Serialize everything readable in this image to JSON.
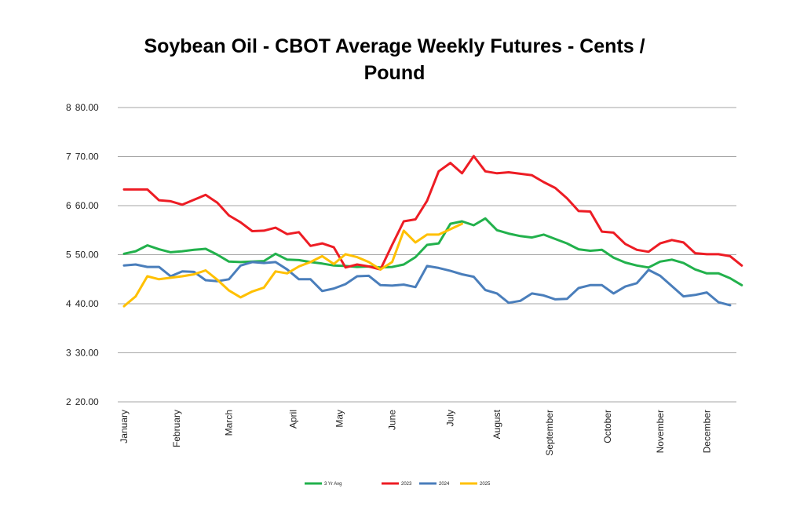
{
  "chart_data": {
    "type": "line",
    "title_line1": "Soybean Oil - CBOT Average Weekly Futures - Cents /",
    "title_line2": "Pound",
    "xlabel": "",
    "ylabel": "",
    "ylim": [
      20,
      80
    ],
    "grid": true,
    "legend_position": "bottom",
    "y_ticks": [
      {
        "value": 80,
        "prefix": "8",
        "label": "80.00"
      },
      {
        "value": 70,
        "prefix": "7",
        "label": "70.00"
      },
      {
        "value": 60,
        "prefix": "6",
        "label": "60.00"
      },
      {
        "value": 50,
        "prefix": "5",
        "label": "50.00"
      },
      {
        "value": 40,
        "prefix": "4",
        "label": "40.00"
      },
      {
        "value": 30,
        "prefix": "3",
        "label": "30.00"
      },
      {
        "value": 20,
        "prefix": "2",
        "label": "20.00"
      }
    ],
    "months": [
      {
        "label": "January",
        "week": 1
      },
      {
        "label": "February",
        "week": 5.5
      },
      {
        "label": "March",
        "week": 10
      },
      {
        "label": "April",
        "week": 15.5
      },
      {
        "label": "May",
        "week": 19.5
      },
      {
        "label": "June",
        "week": 24
      },
      {
        "label": "July",
        "week": 29
      },
      {
        "label": "August",
        "week": 33
      },
      {
        "label": "September",
        "week": 37.5
      },
      {
        "label": "October",
        "week": 42.5
      },
      {
        "label": "November",
        "week": 47
      },
      {
        "label": "December",
        "week": 51
      }
    ],
    "x_range": [
      1,
      53
    ],
    "series": [
      {
        "name": "3 Yr Avg",
        "color": "#22b14c",
        "values": [
          50.2,
          50.7,
          51.9,
          51.1,
          50.5,
          50.7,
          51.0,
          51.2,
          50.0,
          48.6,
          48.5,
          48.6,
          48.7,
          50.2,
          49.0,
          48.9,
          48.5,
          48.2,
          47.8,
          47.7,
          47.5,
          47.6,
          47.4,
          47.5,
          48.0,
          49.5,
          52.0,
          52.3,
          56.3,
          56.8,
          56.0,
          57.4,
          55.0,
          54.3,
          53.8,
          53.5,
          54.1,
          53.2,
          52.3,
          51.1,
          50.8,
          51.0,
          49.4,
          48.4,
          47.8,
          47.4,
          48.6,
          49.0,
          48.3,
          47.0,
          46.2,
          46.2,
          45.2,
          43.8
        ]
      },
      {
        "name": "2023",
        "color": "#ed1c24",
        "values": [
          63.3,
          63.3,
          63.3,
          61.1,
          60.9,
          60.2,
          61.2,
          62.2,
          60.6,
          58.0,
          56.6,
          54.8,
          54.9,
          55.5,
          54.2,
          54.6,
          51.8,
          52.3,
          51.5,
          47.4,
          48.0,
          47.6,
          47.0,
          52.0,
          56.8,
          57.2,
          61.0,
          67.0,
          68.7,
          66.6,
          70.1,
          67.0,
          66.6,
          66.8,
          66.5,
          66.2,
          64.8,
          63.6,
          61.5,
          58.9,
          58.8,
          54.7,
          54.5,
          52.2,
          51.0,
          50.6,
          52.3,
          53.0,
          52.5,
          50.3,
          50.1,
          50.1,
          49.7,
          47.8
        ]
      },
      {
        "name": "2024",
        "color": "#4a7ebb",
        "values": [
          47.8,
          48.0,
          47.5,
          47.5,
          45.6,
          46.6,
          46.5,
          44.8,
          44.6,
          45.0,
          47.8,
          48.5,
          48.3,
          48.5,
          47.0,
          45.0,
          45.0,
          42.6,
          43.1,
          44.0,
          45.6,
          45.7,
          43.8,
          43.7,
          43.9,
          43.4,
          47.7,
          47.3,
          46.7,
          46.0,
          45.5,
          42.8,
          42.1,
          40.2,
          40.6,
          42.1,
          41.7,
          40.9,
          41.0,
          43.2,
          43.8,
          43.8,
          42.1,
          43.5,
          44.2,
          46.9,
          45.7,
          43.6,
          41.5,
          41.8,
          42.3,
          40.3,
          39.7
        ]
      },
      {
        "name": "2025",
        "color": "#ffc000",
        "values": [
          39.5,
          41.5,
          45.6,
          45.0,
          45.3,
          45.6,
          46.0,
          46.8,
          44.9,
          42.7,
          41.3,
          42.5,
          43.3,
          46.6,
          46.2,
          47.6,
          48.5,
          49.7,
          48.1,
          50.1,
          49.5,
          48.5,
          47.0,
          48.5,
          54.9,
          52.5,
          54.1,
          54.1,
          55.2,
          56.3
        ]
      }
    ]
  }
}
